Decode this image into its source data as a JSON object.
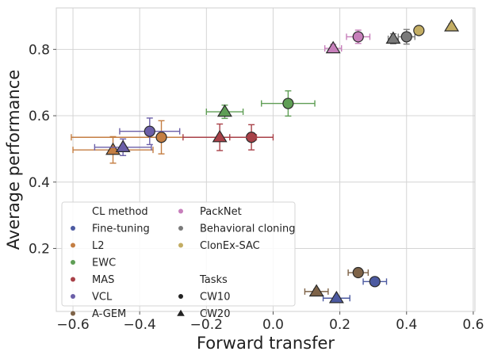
{
  "chart_data": {
    "type": "scatter",
    "xlabel": "Forward transfer",
    "ylabel": "Average performance",
    "xlim": [
      -0.65,
      0.605
    ],
    "ylim": [
      0.01,
      0.925
    ],
    "xticks": [
      -0.6,
      -0.4,
      -0.2,
      0.0,
      0.2,
      0.4,
      0.6
    ],
    "xtick_labels": [
      "−0.6",
      "−0.4",
      "−0.2",
      "0.0",
      "0.2",
      "0.4",
      "0.6"
    ],
    "yticks": [
      0.2,
      0.4,
      0.6,
      0.8
    ],
    "ytick_labels": [
      "0.2",
      "0.4",
      "0.6",
      "0.8"
    ],
    "grid": true,
    "legend_placement": "lower-left",
    "legend": {
      "method_title": "CL method",
      "task_title": "Tasks",
      "methods": [
        {
          "name": "Fine-tuning",
          "color": "#4c5aa1"
        },
        {
          "name": "L2",
          "color": "#c47e43"
        },
        {
          "name": "EWC",
          "color": "#5f9e55"
        },
        {
          "name": "MAS",
          "color": "#a84148"
        },
        {
          "name": "VCL",
          "color": "#6b5fa8"
        },
        {
          "name": "A-GEM",
          "color": "#7e6348"
        },
        {
          "name": "PackNet",
          "color": "#c77fbb"
        },
        {
          "name": "Behavioral cloning",
          "color": "#7a7a7a"
        },
        {
          "name": "ClonEx-SAC",
          "color": "#c3ad63"
        }
      ],
      "tasks": [
        {
          "name": "CW10",
          "marker": "circle"
        },
        {
          "name": "CW20",
          "marker": "triangle"
        }
      ]
    },
    "series": [
      {
        "name": "Fine-tuning",
        "color": "#4c5aa1",
        "points": [
          {
            "task": "CW10",
            "x": 0.305,
            "y": 0.1,
            "xerr": 0.035,
            "yerr": 0.008
          },
          {
            "task": "CW20",
            "x": 0.19,
            "y": 0.05,
            "xerr": 0.04,
            "yerr": 0.006
          }
        ]
      },
      {
        "name": "L2",
        "color": "#c47e43",
        "points": [
          {
            "task": "CW10",
            "x": -0.335,
            "y": 0.535,
            "xerr": 0.27,
            "yerr": 0.05
          },
          {
            "task": "CW20",
            "x": -0.48,
            "y": 0.497,
            "xerr": 0.12,
            "yerr": 0.04
          }
        ]
      },
      {
        "name": "EWC",
        "color": "#5f9e55",
        "points": [
          {
            "task": "CW10",
            "x": 0.045,
            "y": 0.637,
            "xerr": 0.08,
            "yerr": 0.038
          },
          {
            "task": "CW20",
            "x": -0.145,
            "y": 0.612,
            "xerr": 0.055,
            "yerr": 0.02
          }
        ]
      },
      {
        "name": "MAS",
        "color": "#a84148",
        "points": [
          {
            "task": "CW10",
            "x": -0.065,
            "y": 0.535,
            "xerr": 0.065,
            "yerr": 0.038
          },
          {
            "task": "CW20",
            "x": -0.16,
            "y": 0.535,
            "xerr": 0.11,
            "yerr": 0.04
          }
        ]
      },
      {
        "name": "VCL",
        "color": "#6b5fa8",
        "points": [
          {
            "task": "CW10",
            "x": -0.37,
            "y": 0.553,
            "xerr": 0.09,
            "yerr": 0.04
          },
          {
            "task": "CW20",
            "x": -0.45,
            "y": 0.505,
            "xerr": 0.085,
            "yerr": 0.025
          }
        ]
      },
      {
        "name": "A-GEM",
        "color": "#7e6348",
        "points": [
          {
            "task": "CW10",
            "x": 0.255,
            "y": 0.127,
            "xerr": 0.03,
            "yerr": 0.008
          },
          {
            "task": "CW20",
            "x": 0.13,
            "y": 0.07,
            "xerr": 0.035,
            "yerr": 0.007
          }
        ]
      },
      {
        "name": "PackNet",
        "color": "#c77fbb",
        "points": [
          {
            "task": "CW10",
            "x": 0.255,
            "y": 0.838,
            "xerr": 0.035,
            "yerr": 0.02
          },
          {
            "task": "CW20",
            "x": 0.18,
            "y": 0.803,
            "xerr": 0.025,
            "yerr": 0.012
          }
        ]
      },
      {
        "name": "Behavioral cloning",
        "color": "#7a7a7a",
        "points": [
          {
            "task": "CW10",
            "x": 0.4,
            "y": 0.838,
            "xerr": 0.025,
            "yerr": 0.022
          },
          {
            "task": "CW20",
            "x": 0.36,
            "y": 0.832,
            "xerr": 0.015,
            "yerr": 0.015
          }
        ]
      },
      {
        "name": "ClonEx-SAC",
        "color": "#c3ad63",
        "points": [
          {
            "task": "CW10",
            "x": 0.437,
            "y": 0.857,
            "xerr": 0.01,
            "yerr": 0.008
          },
          {
            "task": "CW20",
            "x": 0.535,
            "y": 0.869,
            "xerr": 0.008,
            "yerr": 0.008
          }
        ]
      }
    ]
  }
}
